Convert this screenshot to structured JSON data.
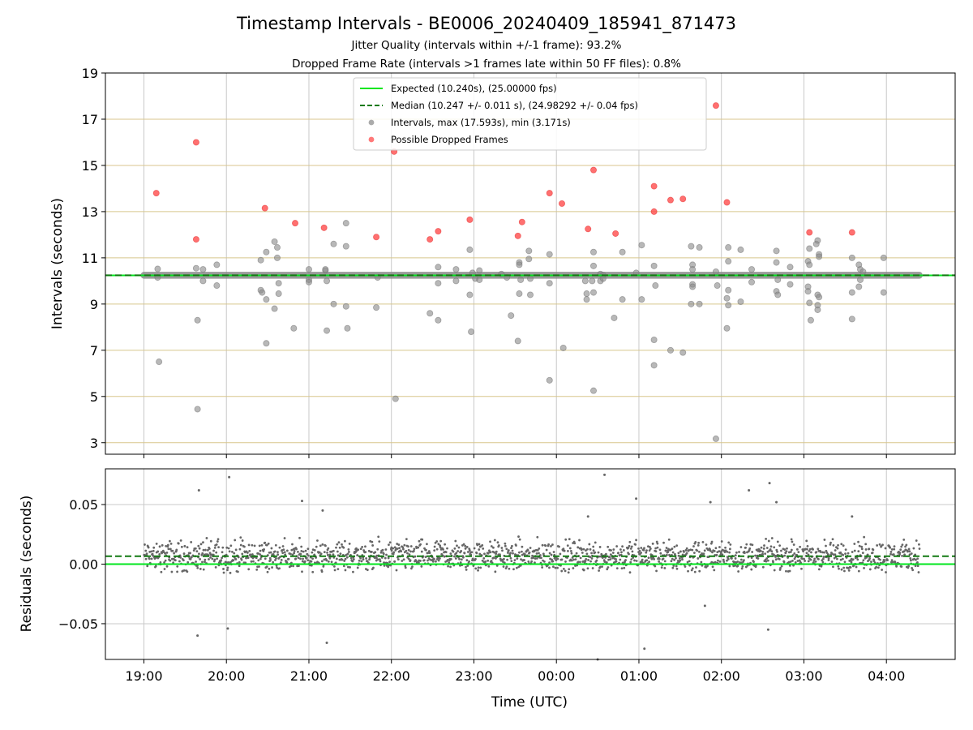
{
  "title": "Timestamp Intervals - BE0006_20240409_185941_871473",
  "subtitle_1": "Jitter Quality (intervals within +/-1 frame): 93.2%",
  "subtitle_2": "Dropped Frame Rate (intervals >1 frames late within 50 FF files): 0.8%",
  "chart_data": [
    {
      "type": "scatter",
      "ylabel": "Intervals (seconds)",
      "ylim": [
        2.5,
        19
      ],
      "yticks": [
        3,
        5,
        7,
        9,
        11,
        13,
        15,
        17,
        19
      ],
      "xlim": [
        "18:32",
        "04:50"
      ],
      "grid": true,
      "legend_position": "top-center",
      "lines": [
        {
          "name": "Expected (10.240s), (25.00000 fps)",
          "y": 10.24,
          "color": "#00e61e",
          "style": "solid"
        },
        {
          "name": "Median (10.247 +/- 0.011 s), (24.98292 +/- 0.04 fps)",
          "y": 10.247,
          "color": "#127a12",
          "style": "dashed"
        }
      ],
      "series": [
        {
          "name": "Intervals, max (17.593s), min (3.171s)",
          "color": "#888888",
          "band": {
            "x_start": "19:00",
            "x_end": "04:24",
            "y_min": 10.22,
            "y_max": 10.27
          },
          "points": [
            [
              "19:10",
              10.52
            ],
            [
              "19:10",
              10.15
            ],
            [
              "19:11",
              6.5
            ],
            [
              "19:38",
              10.55
            ],
            [
              "19:39",
              8.3
            ],
            [
              "19:39",
              4.45
            ],
            [
              "19:43",
              10.5
            ],
            [
              "19:43",
              10.0
            ],
            [
              "19:53",
              10.7
            ],
            [
              "19:53",
              9.8
            ],
            [
              "20:25",
              10.9
            ],
            [
              "20:25",
              9.6
            ],
            [
              "20:26",
              9.5
            ],
            [
              "20:29",
              11.25
            ],
            [
              "20:29",
              9.2
            ],
            [
              "20:29",
              7.3
            ],
            [
              "20:35",
              11.7
            ],
            [
              "20:35",
              8.8
            ],
            [
              "20:37",
              11.45
            ],
            [
              "20:37",
              11.0
            ],
            [
              "20:38",
              9.45
            ],
            [
              "20:38",
              9.9
            ],
            [
              "20:49",
              7.95
            ],
            [
              "21:00",
              10.5
            ],
            [
              "21:00",
              10.05
            ],
            [
              "21:00",
              9.95
            ],
            [
              "21:12",
              10.45
            ],
            [
              "21:12",
              10.5
            ],
            [
              "21:13",
              10.0
            ],
            [
              "21:13",
              7.85
            ],
            [
              "21:18",
              11.6
            ],
            [
              "21:18",
              9.0
            ],
            [
              "21:27",
              12.5
            ],
            [
              "21:27",
              11.5
            ],
            [
              "21:27",
              8.9
            ],
            [
              "21:28",
              7.95
            ],
            [
              "21:49",
              8.85
            ],
            [
              "21:50",
              10.15
            ],
            [
              "22:03",
              4.9
            ],
            [
              "22:28",
              8.6
            ],
            [
              "22:34",
              10.6
            ],
            [
              "22:34",
              9.9
            ],
            [
              "22:34",
              8.3
            ],
            [
              "22:47",
              10.5
            ],
            [
              "22:47",
              10.0
            ],
            [
              "22:57",
              11.35
            ],
            [
              "22:57",
              9.4
            ],
            [
              "22:58",
              7.8
            ],
            [
              "22:59",
              10.35
            ],
            [
              "23:01",
              10.1
            ],
            [
              "23:04",
              10.45
            ],
            [
              "23:04",
              10.05
            ],
            [
              "23:20",
              10.3
            ],
            [
              "23:24",
              10.15
            ],
            [
              "23:27",
              8.5
            ],
            [
              "23:33",
              10.8
            ],
            [
              "23:33",
              10.7
            ],
            [
              "23:34",
              10.05
            ],
            [
              "23:33",
              9.45
            ],
            [
              "23:32",
              7.4
            ],
            [
              "23:40",
              11.3
            ],
            [
              "23:40",
              10.95
            ],
            [
              "23:41",
              10.1
            ],
            [
              "23:41",
              9.4
            ],
            [
              "23:55",
              11.15
            ],
            [
              "23:55",
              9.9
            ],
            [
              "23:55",
              5.7
            ],
            [
              "24:05",
              7.1
            ],
            [
              "24:21",
              10.0
            ],
            [
              "24:22",
              9.45
            ],
            [
              "24:22",
              9.2
            ],
            [
              "24:26",
              10.0
            ],
            [
              "24:27",
              11.25
            ],
            [
              "24:27",
              10.65
            ],
            [
              "24:27",
              9.5
            ],
            [
              "24:27",
              5.25
            ],
            [
              "24:32",
              10.3
            ],
            [
              "24:32",
              10.0
            ],
            [
              "24:34",
              10.25
            ],
            [
              "24:34",
              10.1
            ],
            [
              "24:42",
              8.4
            ],
            [
              "24:48",
              11.25
            ],
            [
              "24:48",
              9.2
            ],
            [
              "24:58",
              10.35
            ],
            [
              "25:02",
              11.55
            ],
            [
              "25:02",
              9.2
            ],
            [
              "25:11",
              10.65
            ],
            [
              "25:12",
              9.8
            ],
            [
              "25:11",
              7.45
            ],
            [
              "25:11",
              6.35
            ],
            [
              "25:23",
              7.0
            ],
            [
              "25:32",
              6.9
            ],
            [
              "25:38",
              11.5
            ],
            [
              "25:39",
              10.7
            ],
            [
              "25:39",
              10.5
            ],
            [
              "25:39",
              9.85
            ],
            [
              "25:39",
              9.75
            ],
            [
              "25:38",
              9.0
            ],
            [
              "25:44",
              11.45
            ],
            [
              "25:44",
              9.0
            ],
            [
              "25:56",
              10.4
            ],
            [
              "25:57",
              9.8
            ],
            [
              "25:56",
              3.17
            ],
            [
              "26:05",
              11.45
            ],
            [
              "26:05",
              10.85
            ],
            [
              "26:05",
              9.6
            ],
            [
              "26:04",
              9.25
            ],
            [
              "26:05",
              8.95
            ],
            [
              "26:04",
              7.95
            ],
            [
              "26:14",
              11.35
            ],
            [
              "26:14",
              9.1
            ],
            [
              "26:22",
              10.5
            ],
            [
              "26:22",
              9.95
            ],
            [
              "26:40",
              11.3
            ],
            [
              "26:40",
              10.8
            ],
            [
              "26:40",
              9.55
            ],
            [
              "26:41",
              9.4
            ],
            [
              "26:41",
              10.05
            ],
            [
              "26:50",
              10.6
            ],
            [
              "26:50",
              9.85
            ],
            [
              "27:03",
              10.85
            ],
            [
              "27:03",
              9.75
            ],
            [
              "27:03",
              9.55
            ],
            [
              "27:04",
              11.4
            ],
            [
              "27:04",
              10.7
            ],
            [
              "27:04",
              9.05
            ],
            [
              "27:05",
              8.3
            ],
            [
              "27:09",
              11.6
            ],
            [
              "27:10",
              11.75
            ],
            [
              "27:11",
              11.15
            ],
            [
              "27:11",
              11.05
            ],
            [
              "27:10",
              9.4
            ],
            [
              "27:11",
              9.3
            ],
            [
              "27:10",
              8.95
            ],
            [
              "27:10",
              8.75
            ],
            [
              "27:35",
              11.0
            ],
            [
              "27:35",
              9.5
            ],
            [
              "27:35",
              8.35
            ],
            [
              "27:40",
              10.7
            ],
            [
              "27:41",
              10.5
            ],
            [
              "27:41",
              10.05
            ],
            [
              "27:40",
              9.75
            ],
            [
              "27:43",
              10.4
            ],
            [
              "27:58",
              11.0
            ],
            [
              "27:58",
              9.5
            ]
          ]
        },
        {
          "name": "Possible Dropped Frames",
          "color": "#ff4040",
          "points": [
            [
              "19:09",
              13.8
            ],
            [
              "19:38",
              16.0
            ],
            [
              "19:38",
              11.8
            ],
            [
              "20:28",
              13.15
            ],
            [
              "20:50",
              12.5
            ],
            [
              "21:11",
              12.3
            ],
            [
              "21:49",
              11.9
            ],
            [
              "22:02",
              15.6
            ],
            [
              "22:28",
              11.8
            ],
            [
              "22:34",
              12.15
            ],
            [
              "22:57",
              12.65
            ],
            [
              "23:32",
              11.95
            ],
            [
              "23:35",
              12.55
            ],
            [
              "23:55",
              13.8
            ],
            [
              "24:04",
              13.35
            ],
            [
              "24:23",
              12.25
            ],
            [
              "24:27",
              14.8
            ],
            [
              "24:43",
              12.05
            ],
            [
              "25:11",
              14.1
            ],
            [
              "25:11",
              13.0
            ],
            [
              "25:23",
              13.5
            ],
            [
              "25:32",
              13.55
            ],
            [
              "25:56",
              17.59
            ],
            [
              "26:04",
              13.4
            ],
            [
              "27:04",
              12.1
            ],
            [
              "27:35",
              12.1
            ]
          ]
        }
      ]
    },
    {
      "type": "scatter",
      "ylabel": "Residuals (seconds)",
      "xlabel": "Time (UTC)",
      "ylim": [
        -0.08,
        0.08
      ],
      "yticks": [
        -0.05,
        0.0,
        0.05
      ],
      "ytick_labels": [
        "−0.05",
        "0.00",
        "0.05"
      ],
      "xticks": [
        "19:00",
        "20:00",
        "21:00",
        "22:00",
        "23:00",
        "00:00",
        "01:00",
        "02:00",
        "03:00",
        "04:00"
      ],
      "xlim": [
        "18:32",
        "04:50"
      ],
      "grid": true,
      "lines": [
        {
          "y": 0.0,
          "color": "#00e61e",
          "style": "solid"
        },
        {
          "y": 0.0066,
          "color": "#127a12",
          "style": "dashed"
        }
      ],
      "series": [
        {
          "color": "#666666",
          "distribution": {
            "x_start": "19:00",
            "x_end": "04:24",
            "center": 0.0066,
            "spread": 0.011,
            "count": 1800
          },
          "outliers": [
            [
              "19:40",
              0.062
            ],
            [
              "19:39",
              -0.06
            ],
            [
              "20:02",
              0.073
            ],
            [
              "20:01",
              -0.054
            ],
            [
              "20:55",
              0.053
            ],
            [
              "21:10",
              0.045
            ],
            [
              "21:13",
              -0.066
            ],
            [
              "24:20",
              -0.005
            ],
            [
              "24:23",
              0.04
            ],
            [
              "24:35",
              0.075
            ],
            [
              "24:30",
              -0.08
            ],
            [
              "24:58",
              0.055
            ],
            [
              "25:04",
              -0.071
            ],
            [
              "25:52",
              0.052
            ],
            [
              "25:48",
              -0.035
            ],
            [
              "26:20",
              0.062
            ],
            [
              "26:35",
              0.068
            ],
            [
              "26:34",
              -0.055
            ],
            [
              "26:40",
              0.052
            ],
            [
              "27:35",
              0.04
            ]
          ]
        }
      ]
    }
  ]
}
